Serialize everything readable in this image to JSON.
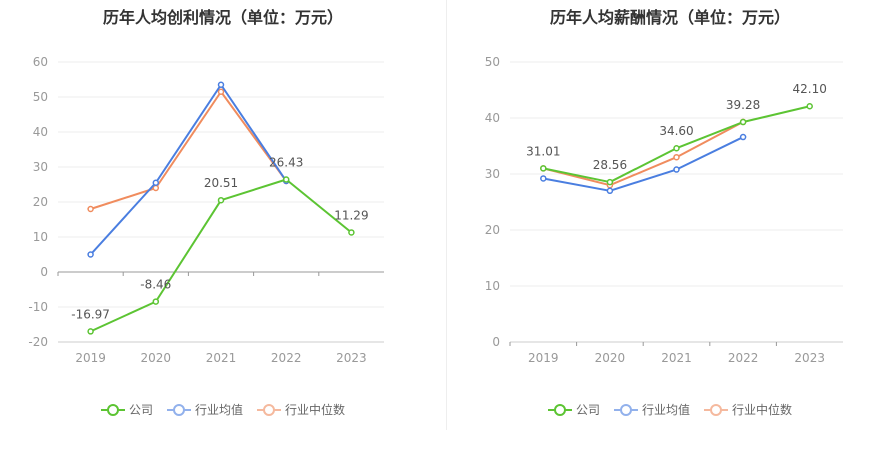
{
  "chart_data": [
    {
      "type": "line",
      "title": "历年人均创利情况（单位：万元）",
      "categories": [
        "2019",
        "2020",
        "2021",
        "2022",
        "2023"
      ],
      "ylim": [
        -20,
        60
      ],
      "yticks": [
        "60",
        "50",
        "40",
        "30",
        "20",
        "10",
        "0",
        "-10",
        "-20"
      ],
      "ytick_values": [
        60,
        50,
        40,
        30,
        20,
        10,
        0,
        -10,
        -20
      ],
      "grid": true,
      "legend_position": "bottom",
      "series": [
        {
          "name": "公司",
          "color": "#5cc433",
          "values": [
            -16.97,
            -8.46,
            20.51,
            26.43,
            11.29
          ],
          "labels": [
            "-16.97",
            "-8.46",
            "20.51",
            "26.43",
            "11.29"
          ]
        },
        {
          "name": "行业均值",
          "color": "#4a7ee0",
          "values": [
            5.0,
            25.5,
            53.5,
            26.0,
            null
          ]
        },
        {
          "name": "行业中位数",
          "color": "#f08c5e",
          "values": [
            18.0,
            24.0,
            51.5,
            26.0,
            null
          ]
        }
      ]
    },
    {
      "type": "line",
      "title": "历年人均薪酬情况（单位：万元）",
      "categories": [
        "2019",
        "2020",
        "2021",
        "2022",
        "2023"
      ],
      "ylim": [
        0,
        50
      ],
      "yticks": [
        "50",
        "40",
        "30",
        "20",
        "10",
        "0"
      ],
      "ytick_values": [
        50,
        40,
        30,
        20,
        10,
        0
      ],
      "grid": true,
      "legend_position": "bottom",
      "series": [
        {
          "name": "公司",
          "color": "#5cc433",
          "values": [
            31.01,
            28.56,
            34.6,
            39.28,
            42.1
          ],
          "labels": [
            "31.01",
            "28.56",
            "34.60",
            "39.28",
            "42.10"
          ]
        },
        {
          "name": "行业均值",
          "color": "#4a7ee0",
          "values": [
            29.2,
            27.0,
            30.8,
            36.6,
            null
          ]
        },
        {
          "name": "行业中位数",
          "color": "#f08c5e",
          "values": [
            31.0,
            28.0,
            33.0,
            39.3,
            null
          ]
        }
      ]
    }
  ],
  "legend": {
    "company": "公司",
    "industry_avg": "行业均值",
    "industry_median": "行业中位数"
  }
}
